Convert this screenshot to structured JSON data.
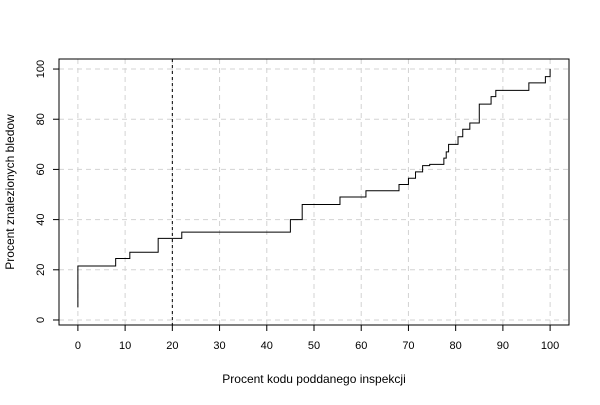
{
  "chart_data": {
    "type": "line",
    "title": "",
    "xlabel": "Procent kodu poddanego inspekcji",
    "ylabel": "Procent znalezionych bledow",
    "xlim": [
      -4,
      104
    ],
    "ylim": [
      -2,
      104
    ],
    "x_ticks": [
      0,
      10,
      20,
      30,
      40,
      50,
      60,
      70,
      80,
      90,
      100
    ],
    "y_ticks": [
      0,
      20,
      40,
      60,
      80,
      100
    ],
    "grid": true,
    "reference_line": {
      "x": 20,
      "style": "dotted"
    },
    "series": [
      {
        "step": true,
        "x": [
          0,
          0,
          0,
          8,
          11,
          17,
          22,
          45,
          47.5,
          55.5,
          61,
          68,
          70,
          71.5,
          73,
          74.5,
          77.5,
          78,
          78.5,
          79.5,
          80.5,
          81.5,
          82.5,
          83,
          85,
          86,
          87.5,
          88.5,
          89.5,
          95.5,
          98,
          99,
          100
        ],
        "y": [
          5,
          13,
          21.5,
          24.5,
          27,
          32.5,
          35,
          40,
          46,
          49,
          51.5,
          54,
          56.5,
          59,
          61.5,
          62,
          64.5,
          67,
          70,
          70,
          73,
          76,
          76,
          78.5,
          86,
          86,
          89,
          91.5,
          91.5,
          94.5,
          94.5,
          97,
          100
        ]
      }
    ]
  }
}
